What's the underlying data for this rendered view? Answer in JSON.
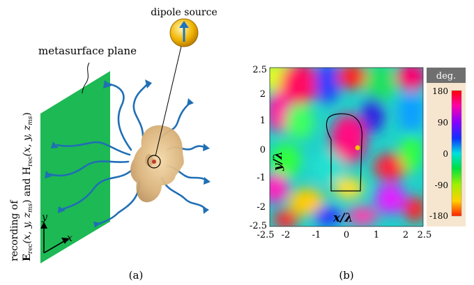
{
  "panel_a": {
    "caption": "(a)",
    "dipole_label": "dipole source",
    "plane_label": "metasurface plane",
    "recording_line1": "recording of",
    "recording_line2_E": "E",
    "recording_line2_sub": "rec",
    "recording_line2_args": "(x, y, z",
    "recording_line2_ms": "ms",
    "recording_line2_and": ") and H",
    "recording_line2_sub2": "rec",
    "recording_line2_args2": "(x, y, z",
    "recording_line2_ms2": "ms",
    "recording_line2_end": ")",
    "axis_y": "y",
    "axis_x": "x",
    "colors": {
      "plane": "#1db954",
      "waves": "#1f6fb5",
      "dipole_outer": "#e8a800",
      "arrow": "#1e73be"
    }
  },
  "panel_b": {
    "caption": "(b)",
    "xlabel": "x/λ",
    "ylabel": "y/λ",
    "x_ticks": [
      "-2.5",
      "-2",
      "-1",
      "0",
      "1",
      "2",
      "2.5"
    ],
    "y_ticks": [
      "2.5",
      "2",
      "1",
      "0",
      "-1",
      "-2",
      "-2.5"
    ],
    "colorbar_title": "deg.",
    "colorbar_ticks": [
      "180",
      "90",
      "0",
      "-90",
      "-180"
    ],
    "source_marker_color": "#f2c400"
  },
  "chart_data": {
    "type": "heatmap",
    "title": "",
    "xlabel": "x/λ",
    "ylabel": "y/λ",
    "xlim": [
      -2.5,
      2.5
    ],
    "ylim": [
      -2.5,
      2.5
    ],
    "value_range": [
      -180,
      180
    ],
    "value_unit": "deg.",
    "source_point": [
      0.4,
      0.1
    ]
  }
}
